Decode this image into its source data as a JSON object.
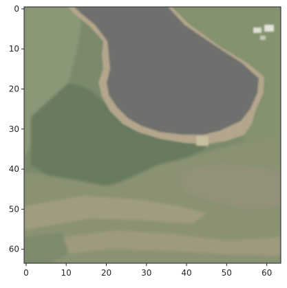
{
  "image": {
    "description_colors": {
      "background": "#ffffff",
      "frame": "#262626",
      "field_light": "#7e8c6e",
      "field_dark": "#667a5f",
      "lake_water": "#6f706e",
      "lake_shore": "#b2a58c",
      "field_tan": "#9b9a7d",
      "buildings": "#dbdcd0"
    },
    "pixel_extent": {
      "width": 64,
      "height": 64
    }
  },
  "axes": {
    "x_ticks": [
      "0",
      "10",
      "20",
      "30",
      "40",
      "50",
      "60"
    ],
    "y_ticks": [
      "0",
      "10",
      "20",
      "30",
      "40",
      "50",
      "60"
    ],
    "x_tick_values": [
      0,
      10,
      20,
      30,
      40,
      50,
      60
    ],
    "y_tick_values": [
      0,
      10,
      20,
      30,
      40,
      50,
      60
    ]
  }
}
